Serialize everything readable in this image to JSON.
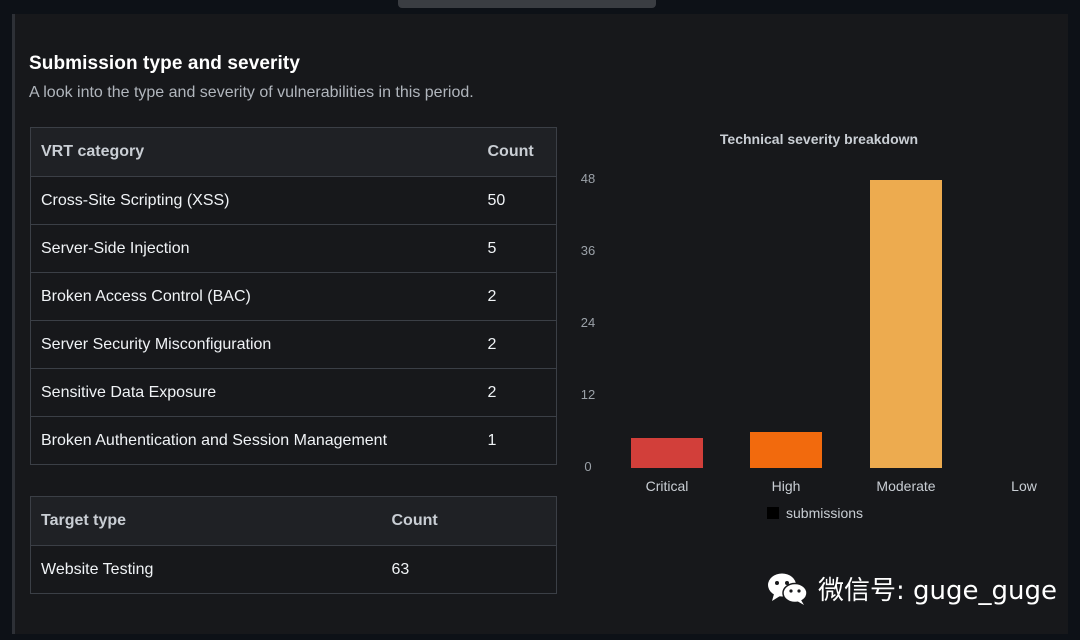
{
  "section": {
    "title": "Submission type and severity",
    "subtitle": "A look into the type and severity of vulnerabilities in this period."
  },
  "vrt_table": {
    "headers": [
      "VRT category",
      "Count"
    ],
    "rows": [
      [
        "Cross-Site Scripting (XSS)",
        "50"
      ],
      [
        "Server-Side Injection",
        "5"
      ],
      [
        "Broken Access Control (BAC)",
        "2"
      ],
      [
        "Server Security Misconfiguration",
        "2"
      ],
      [
        "Sensitive Data Exposure",
        "2"
      ],
      [
        "Broken Authentication and Session Management",
        "1"
      ]
    ]
  },
  "target_table": {
    "headers": [
      "Target type",
      "Count"
    ],
    "rows": [
      [
        "Website Testing",
        "63"
      ]
    ]
  },
  "watermark": {
    "text": "微信号: guge_guge",
    "icon": "wechat-icon"
  },
  "chart_data": {
    "type": "bar",
    "title": "Technical severity breakdown",
    "categories": [
      "Critical",
      "High",
      "Moderate",
      "Low"
    ],
    "series": [
      {
        "name": "submissions",
        "values": [
          5,
          6,
          48,
          0
        ]
      }
    ],
    "bar_colors": [
      "#d23f3a",
      "#f26a0d",
      "#edab4f",
      "#edab4f"
    ],
    "legend_color": "#000000",
    "ylim": [
      0,
      48
    ],
    "yticks": [
      "0",
      "12",
      "24",
      "36",
      "48"
    ],
    "legend_position": "bottom",
    "grid": false
  }
}
